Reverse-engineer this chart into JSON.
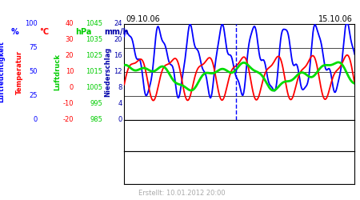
{
  "date_left": "09.10.06",
  "date_right": "15.10.06",
  "footer": "Erstellt: 10.01.2012 20:00",
  "ylabel_left1": "Luftfeuchtigkeit",
  "ylabel_left2": "Temperatur",
  "ylabel_left3": "Luftdruck",
  "ylabel_right": "Niederschlag",
  "unit_pct": "%",
  "unit_celsius": "°C",
  "unit_hpa": "hPa",
  "unit_mmh": "mm/h",
  "color_blue": "#0000ff",
  "color_red": "#ff0000",
  "color_green": "#00dd00",
  "color_label_pct": "#0000ff",
  "color_label_celsius": "#ff0000",
  "color_label_hpa": "#00cc00",
  "color_label_mmh": "#0000aa",
  "bg_color": "#ffffff",
  "plot_bg": "#ffffff",
  "grid_color": "#000000",
  "n_points": 300,
  "vline_color": "#0000ff",
  "vline_pos": 0.485,
  "pct_ticks": [
    0,
    25,
    50,
    75,
    100
  ],
  "celsius_ticks": [
    -20,
    -10,
    0,
    10,
    20,
    30,
    40
  ],
  "hpa_ticks": [
    985,
    995,
    1005,
    1015,
    1025,
    1035,
    1045
  ],
  "mmh_ticks": [
    0,
    4,
    8,
    12,
    16,
    20,
    24
  ]
}
